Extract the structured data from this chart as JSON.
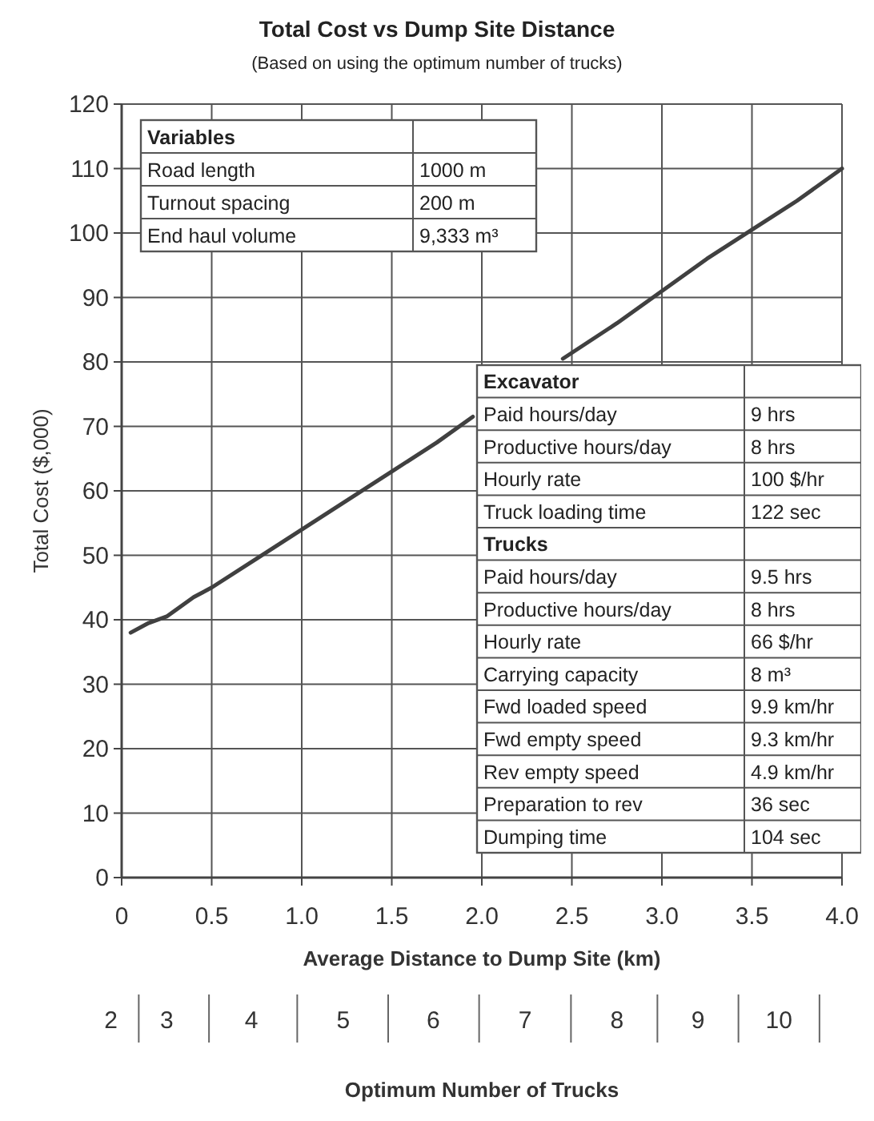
{
  "chart_data": {
    "type": "line",
    "title": "Total Cost vs Dump Site Distance",
    "subtitle": "(Based on using the optimum number of trucks)",
    "xlabel": "Average Distance to Dump Site (km)",
    "ylabel": "Total Cost ($,000)",
    "x": [
      0.05,
      0.15,
      0.25,
      0.4,
      0.5,
      0.75,
      1.0,
      1.25,
      1.5,
      1.75,
      1.95,
      2.2,
      2.45,
      2.75,
      3.0,
      3.25,
      3.5,
      3.75,
      4.0
    ],
    "series": [
      {
        "color": "#404040",
        "values": [
          38,
          39.5,
          40.5,
          43.5,
          45,
          49.5,
          54,
          58.5,
          63,
          67.5,
          71.5,
          null,
          80.5,
          86,
          91,
          96,
          100.5,
          105,
          110
        ]
      }
    ],
    "xlim": [
      0,
      4.0
    ],
    "xticks": [
      0,
      0.5,
      {
        "value": 1,
        "label": "1.0"
      },
      1.5,
      {
        "value": 2,
        "label": "2.0"
      },
      2.5,
      {
        "value": 3,
        "label": "3.0"
      },
      3.5,
      {
        "value": 4,
        "label": "4.0"
      }
    ],
    "ylim": [
      0,
      120
    ],
    "yticks": [
      0,
      10,
      20,
      30,
      40,
      50,
      60,
      70,
      80,
      90,
      100,
      110,
      120
    ],
    "grid": true,
    "marker": "none",
    "line_style": "solid",
    "annotations": [
      "Variables",
      "Road length",
      "1000 m",
      "Turnout spacing",
      "200 m",
      "End haul volume",
      "9,333 m³",
      "Excavator",
      "Paid hours/day",
      "9 hrs",
      "Productive hours/day",
      "8 hrs",
      "Hourly rate",
      "100 $/hr",
      "Truck loading time",
      "122 sec",
      "Trucks",
      "Paid hours/day",
      "9.5 hrs",
      "Productive hours/day",
      "8 hrs",
      "Hourly rate",
      "66 $/hr",
      "Carrying capacity",
      "8 m³",
      "Fwd loaded speed",
      "9.9 km/hr",
      "Fwd empty speed",
      "9.3 km/hr",
      "Rev empty speed",
      "4.9 km/hr",
      "Preparation to rev",
      "36 sec",
      "Dumping time",
      "104 sec",
      "2",
      "3",
      "4",
      "5",
      "6",
      "7",
      "8",
      "9",
      "10",
      "Optimum Number of Trucks"
    ]
  }
}
